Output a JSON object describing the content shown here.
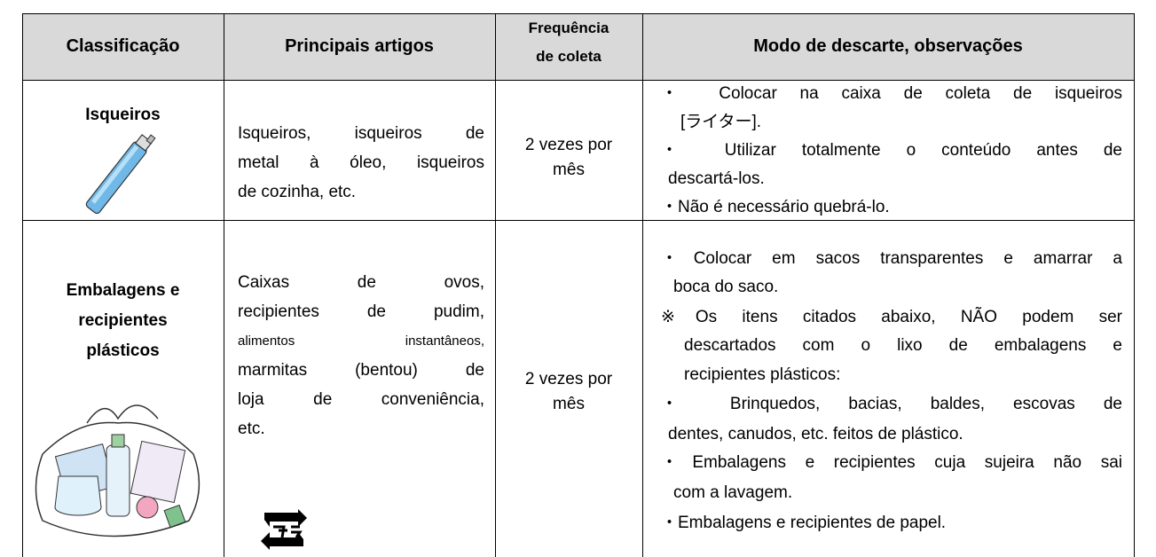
{
  "table": {
    "header": [
      "Classificação",
      "Principais artigos",
      [
        "Frequência",
        "de coleta"
      ],
      "Modo de descarte, observações"
    ],
    "rows": [
      {
        "category": [
          "Isqueiros"
        ],
        "items": [
          "Isqueiros, isqueiros de",
          "metal à óleo, isqueiros",
          "de cozinha, etc."
        ],
        "frequency": [
          "2 vezes por",
          "mês"
        ],
        "notes": [
          "・ Colocar na caixa de coleta de isqueiros",
          "[ライター].",
          "・ Utilizar totalmente o conteúdo antes de",
          "descartá-los.",
          "・Não é necessário quebrá-lo."
        ]
      },
      {
        "category": [
          "Embalagens e",
          "recipientes",
          "plásticos"
        ],
        "items": [
          "Caixas de ovos,",
          "recipientes de pudim,",
          "alimentos instantâneos,",
          "marmitas (bentou) de",
          "loja de conveniência,",
          "etc."
        ],
        "frequency": [
          "2 vezes por",
          "mês"
        ],
        "notes": [
          "・Colocar em sacos transparentes e amarrar a",
          "boca do saco.",
          "※Os itens citados abaixo, NÃO podem ser",
          "descartados com o lixo de embalagens e",
          "recipientes plásticos:",
          "・ Brinquedos, bacias, baldes, escovas de",
          "dentes, canudos, etc. feitos de plástico.",
          "・Embalagens e recipientes cuja sujeira não sai",
          "com a lavagem.",
          "・Embalagens e recipientes de papel."
        ]
      }
    ]
  }
}
